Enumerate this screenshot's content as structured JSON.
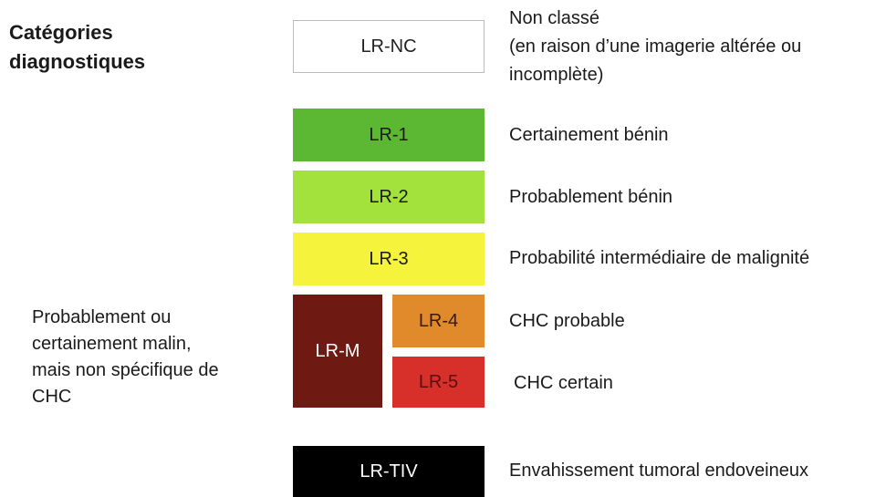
{
  "title": [
    "Catégories",
    "diagnostiques"
  ],
  "categories": [
    {
      "code": "LR-NC",
      "description": [
        "Non classé",
        "(en raison d’une imagerie altérée ou",
        "incomplète)"
      ]
    },
    {
      "code": "LR-1",
      "description": [
        "Certainement bénin"
      ]
    },
    {
      "code": "LR-2",
      "description": [
        "Probablement bénin"
      ]
    },
    {
      "code": "LR-3",
      "description": [
        "Probabilité intermédiaire de malignité"
      ]
    },
    {
      "code": "LR-4",
      "description": [
        "CHC probable"
      ]
    },
    {
      "code": "LR-5",
      "description": [
        "CHC certain"
      ]
    },
    {
      "code": "LR-TIV",
      "description": [
        "Envahissement tumoral endoveineux"
      ]
    }
  ],
  "lr_m": {
    "code": "LR-M",
    "description": [
      "Probablement ou",
      "certainement malin,",
      "mais non spécifique de",
      "CHC"
    ]
  }
}
